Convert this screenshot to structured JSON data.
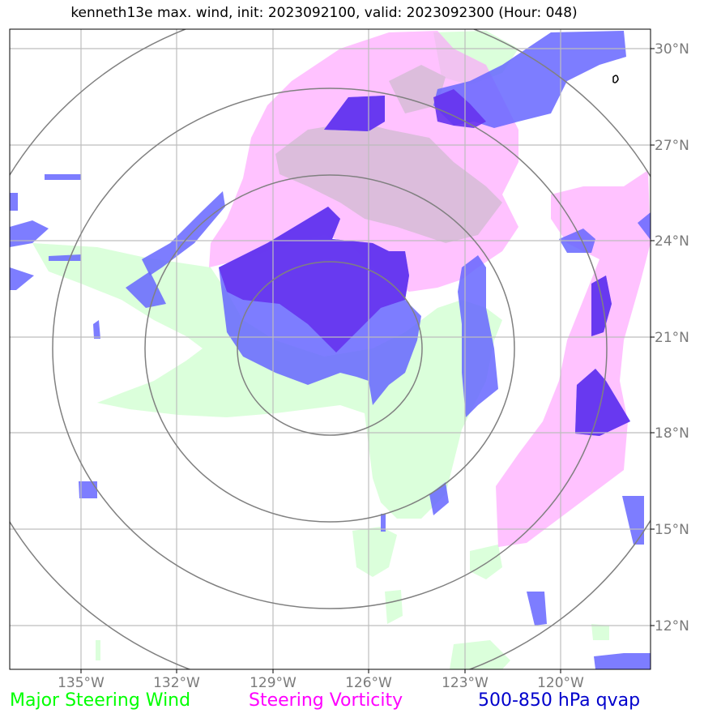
{
  "title": "kenneth13e max. wind, init: 2023092100, valid: 2023092300 (Hour: 048)",
  "map": {
    "lat_labels": [
      "30°N",
      "27°N",
      "24°N",
      "21°N",
      "18°N",
      "15°N",
      "12°N"
    ],
    "lon_labels": [
      "135°W",
      "132°W",
      "129°W",
      "126°W",
      "123°W",
      "120°W"
    ],
    "center": {
      "lat": 20.8,
      "lon": -127.2
    },
    "range_rings": 4,
    "colors": {
      "steering_wind": "#00ff00",
      "steering_vorticity": "#ff00ff",
      "qvap": "#0000cc",
      "grid": "#bdbdbd",
      "ring": "#808080"
    }
  },
  "legend": {
    "steering_wind": "Major Steering Wind",
    "steering_vorticity": "Steering Vorticity",
    "qvap": "500-850 hPa qvap"
  }
}
